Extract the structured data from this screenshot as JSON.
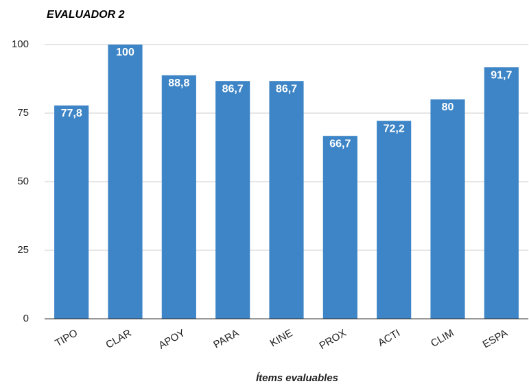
{
  "chart_data": {
    "type": "bar",
    "title": "EVALUADOR 2",
    "x_label": "Ítems evaluables",
    "categories": [
      "TIPO",
      "CLAR",
      "APOY",
      "PARA",
      "KINE",
      "PROX",
      "ACTI",
      "CLIM",
      "ESPA"
    ],
    "values": [
      77.8,
      100,
      88.8,
      86.7,
      86.7,
      66.7,
      72.2,
      80,
      91.7
    ],
    "value_labels": [
      "77,8",
      "100",
      "88,8",
      "86,7",
      "86,7",
      "66,7",
      "72,2",
      "80",
      "91,7"
    ],
    "color": "#3d85c6",
    "ylim": [
      0,
      100
    ],
    "yticks": [
      0,
      25,
      50,
      75,
      100
    ],
    "grid": true
  }
}
